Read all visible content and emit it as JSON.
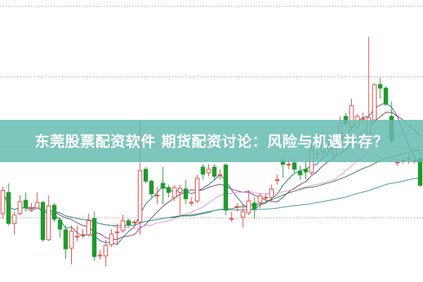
{
  "banner": {
    "title": "东莞股票配资软件 期货配资讨论：风险与机遇并存？"
  },
  "chart_data": {
    "type": "candlestick",
    "title": "",
    "xlabel": "",
    "ylabel": "",
    "ylim": [
      0.9,
      40.9
    ],
    "grid": true,
    "gridlines_y": [
      10,
      20,
      30,
      40
    ],
    "up_color": "#e0403a",
    "down_color": "#1e9a2e",
    "ma_colors": [
      "#2d6f86",
      "#7a3d6e",
      "#e88ee0",
      "#2f7d34",
      "#3b93a6"
    ],
    "candles_ohlc": [
      [
        10.6,
        13.9,
        14.4,
        9.9
      ],
      [
        13.6,
        9.2,
        14.9,
        8.9
      ],
      [
        9.2,
        10.4,
        10.9,
        7.6
      ],
      [
        10.6,
        12.3,
        13.2,
        10.4
      ],
      [
        12.5,
        11.4,
        13.6,
        10.9
      ],
      [
        11.4,
        11.4,
        12.1,
        10.9
      ],
      [
        11.4,
        12.2,
        13.6,
        11.2
      ],
      [
        12.2,
        6.9,
        12.4,
        6.6
      ],
      [
        6.9,
        11.7,
        13.2,
        6.7
      ],
      [
        11.8,
        9.8,
        12.1,
        9.4
      ],
      [
        9.7,
        8.4,
        10.1,
        7.2
      ],
      [
        8.3,
        5.6,
        8.9,
        4.2
      ],
      [
        5.7,
        8.1,
        8.9,
        3.4
      ],
      [
        7.4,
        7.4,
        8.9,
        6.7
      ],
      [
        7.6,
        7.6,
        8.4,
        7.1
      ],
      [
        7.6,
        9.6,
        10.6,
        7.3
      ],
      [
        9.9,
        4.5,
        10.9,
        3.9
      ],
      [
        4.7,
        4.7,
        5.4,
        4.1
      ],
      [
        4.6,
        6.1,
        6.9,
        3.1
      ],
      [
        6.2,
        7.7,
        8.4,
        5.9
      ],
      [
        8.0,
        8.0,
        9.2,
        6.2
      ],
      [
        8.2,
        9.6,
        10.4,
        7.9
      ],
      [
        9.6,
        9.0,
        9.9,
        8.7
      ],
      [
        9.4,
        9.4,
        9.7,
        8.9
      ],
      [
        9.4,
        16.7,
        23.6,
        7.6
      ],
      [
        16.9,
        15.2,
        17.2,
        14.9
      ],
      [
        15.2,
        13.4,
        15.4,
        12.9
      ],
      [
        13.2,
        13.2,
        14.4,
        11.9
      ],
      [
        14.9,
        14.2,
        17.2,
        11.9
      ],
      [
        14.3,
        13.6,
        14.7,
        12.9
      ],
      [
        12.9,
        14.3,
        14.6,
        12.4
      ],
      [
        13.6,
        14.2,
        14.7,
        10.4
      ],
      [
        14.1,
        12.7,
        15.4,
        11.9
      ],
      [
        12.2,
        12.2,
        12.9,
        11.7
      ],
      [
        12.4,
        15.6,
        16.1,
        12.1
      ],
      [
        17.2,
        16.2,
        17.6,
        15.4
      ],
      [
        16.4,
        16.9,
        17.6,
        15.9
      ],
      [
        17.2,
        15.9,
        17.6,
        15.4
      ],
      [
        16.1,
        16.1,
        16.9,
        15.4
      ],
      [
        17.5,
        11.1,
        17.7,
        10.4
      ],
      [
        9.9,
        9.9,
        10.9,
        9.4
      ],
      [
        11.6,
        11.6,
        12.1,
        10.9
      ],
      [
        10.1,
        10.9,
        11.9,
        8.6
      ],
      [
        10.7,
        12.4,
        13.9,
        10.4
      ],
      [
        12.1,
        11.2,
        12.9,
        9.9
      ],
      [
        12.2,
        13.1,
        13.4,
        11.4
      ],
      [
        12.9,
        12.9,
        13.4,
        12.4
      ],
      [
        12.9,
        14.1,
        14.7,
        12.4
      ],
      [
        15.4,
        15.4,
        16.1,
        14.7
      ],
      [
        18.1,
        17.6,
        18.7,
        15.7
      ],
      [
        17.6,
        17.6,
        18.4,
        16.9
      ],
      [
        17.8,
        16.9,
        18.4,
        16.4
      ],
      [
        16.6,
        16.1,
        17.4,
        15.4
      ],
      [
        16.9,
        16.5,
        17.9,
        15.4
      ],
      [
        16.4,
        19.6,
        20.4,
        16.1
      ],
      [
        19.1,
        19.1,
        19.9,
        18.4
      ],
      [
        19.4,
        21.4,
        22.1,
        19.1
      ],
      [
        20.4,
        19.9,
        21.4,
        19.4
      ],
      [
        18.9,
        20.9,
        21.9,
        18.4
      ],
      [
        20.4,
        23.4,
        24.4,
        19.9
      ],
      [
        24.4,
        23.4,
        24.9,
        22.9
      ],
      [
        22.9,
        25.9,
        26.9,
        22.4
      ],
      [
        22.9,
        24.4,
        24.7,
        22.4
      ],
      [
        24.1,
        24.1,
        24.9,
        23.4
      ],
      [
        21.3,
        24.2,
        35.7,
        20.9
      ],
      [
        23.9,
        28.9,
        29.1,
        23.4
      ],
      [
        28.9,
        28.4,
        29.9,
        26.9
      ],
      [
        28.4,
        26.1,
        28.7,
        25.9
      ],
      [
        24.4,
        20.9,
        26.5,
        20.4
      ],
      [
        17.9,
        17.9,
        18.4,
        17.4
      ],
      [
        18.1,
        18.1,
        18.7,
        17.7
      ],
      [
        18.4,
        18.4,
        19.1,
        17.7
      ],
      [
        18.1,
        18.1,
        18.7,
        17.7
      ],
      [
        18.4,
        14.6,
        19.4,
        14.4
      ]
    ]
  }
}
